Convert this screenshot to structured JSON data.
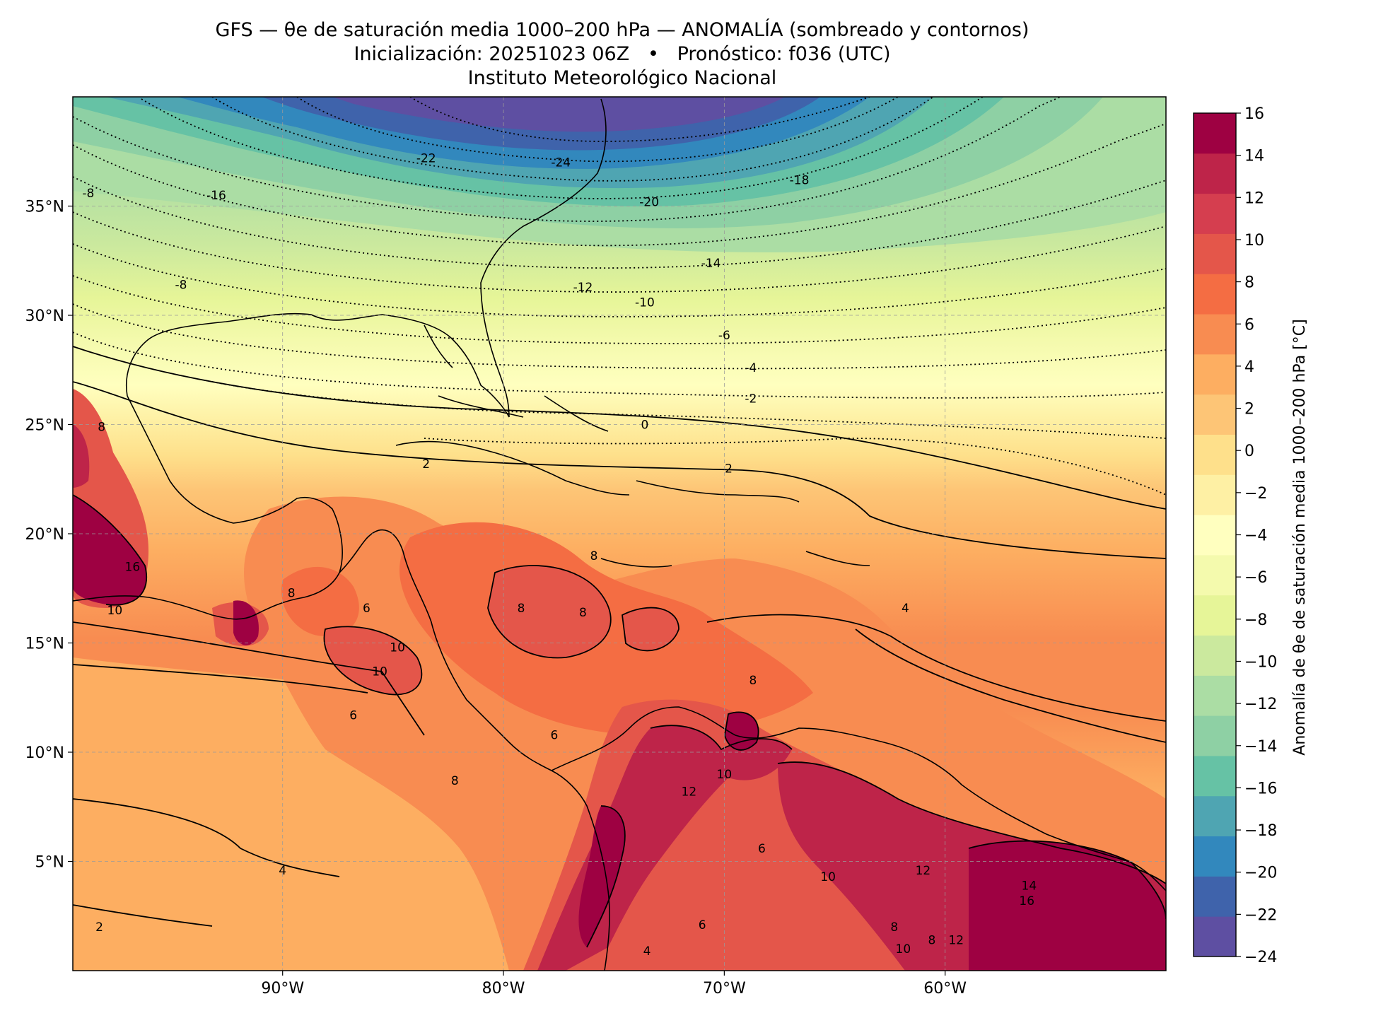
{
  "title": {
    "line1": "GFS — θe de saturación media 1000–200 hPa — ANOMALÍA (sombreado y contornos)",
    "line2": "Inicialización: 20251023 06Z   •   Pronóstico: f036 (UTC)",
    "line3": "Instituto Meteorológico Nacional"
  },
  "map": {
    "lon_range": [
      -99.5,
      -50
    ],
    "lat_range": [
      0,
      40
    ],
    "grid": true,
    "lon_ticks": [
      {
        "value": -90,
        "label": "90°W"
      },
      {
        "value": -80,
        "label": "80°W"
      },
      {
        "value": -70,
        "label": "70°W"
      },
      {
        "value": -60,
        "label": "60°W"
      }
    ],
    "lat_ticks": [
      {
        "value": 35,
        "label": "35°N"
      },
      {
        "value": 30,
        "label": "30°N"
      },
      {
        "value": 25,
        "label": "25°N"
      },
      {
        "value": 20,
        "label": "20°N"
      },
      {
        "value": 15,
        "label": "15°N"
      },
      {
        "value": 10,
        "label": "10°N"
      },
      {
        "value": 5,
        "label": "5°N"
      }
    ],
    "contour_labels": [
      {
        "text": "-24",
        "lon": -77.4,
        "lat": 37.0
      },
      {
        "text": "-22",
        "lon": -83.5,
        "lat": 37.2
      },
      {
        "text": "-20",
        "lon": -73.4,
        "lat": 35.2
      },
      {
        "text": "-18",
        "lon": -66.6,
        "lat": 36.2
      },
      {
        "text": "-16",
        "lon": -93.0,
        "lat": 35.5
      },
      {
        "text": "-14",
        "lon": -70.6,
        "lat": 32.4
      },
      {
        "text": "-12",
        "lon": -76.4,
        "lat": 31.3
      },
      {
        "text": "-10",
        "lon": -73.6,
        "lat": 30.6
      },
      {
        "text": "-8",
        "lon": -94.6,
        "lat": 31.4
      },
      {
        "text": "-8",
        "lon": -98.8,
        "lat": 35.6
      },
      {
        "text": "-6",
        "lon": -70.0,
        "lat": 29.1
      },
      {
        "text": "-4",
        "lon": -68.8,
        "lat": 27.6
      },
      {
        "text": "-2",
        "lon": -68.8,
        "lat": 26.2
      },
      {
        "text": "0",
        "lon": -73.6,
        "lat": 25.0
      },
      {
        "text": "2",
        "lon": -83.5,
        "lat": 23.2
      },
      {
        "text": "2",
        "lon": -69.8,
        "lat": 23.0
      },
      {
        "text": "4",
        "lon": -61.8,
        "lat": 16.6
      },
      {
        "text": "4",
        "lon": -73.5,
        "lat": 0.9
      },
      {
        "text": "4",
        "lon": -90.0,
        "lat": 4.6
      },
      {
        "text": "2",
        "lon": -98.3,
        "lat": 2.0
      },
      {
        "text": "6",
        "lon": -86.2,
        "lat": 16.6
      },
      {
        "text": "6",
        "lon": -86.8,
        "lat": 11.7
      },
      {
        "text": "6",
        "lon": -77.7,
        "lat": 10.8
      },
      {
        "text": "6",
        "lon": -68.3,
        "lat": 5.6
      },
      {
        "text": "6",
        "lon": -71.0,
        "lat": 2.1
      },
      {
        "text": "8",
        "lon": -89.6,
        "lat": 17.3
      },
      {
        "text": "8",
        "lon": -75.9,
        "lat": 19.0
      },
      {
        "text": "8",
        "lon": -76.4,
        "lat": 16.4
      },
      {
        "text": "8",
        "lon": -79.2,
        "lat": 16.6
      },
      {
        "text": "8",
        "lon": -68.7,
        "lat": 13.3
      },
      {
        "text": "8",
        "lon": -82.2,
        "lat": 8.7
      },
      {
        "text": "8",
        "lon": -98.2,
        "lat": 24.9
      },
      {
        "text": "8",
        "lon": -60.6,
        "lat": 1.4
      },
      {
        "text": "8",
        "lon": -62.3,
        "lat": 2.0
      },
      {
        "text": "10",
        "lon": -97.6,
        "lat": 16.5
      },
      {
        "text": "10",
        "lon": -85.6,
        "lat": 13.7
      },
      {
        "text": "10",
        "lon": -84.8,
        "lat": 14.8
      },
      {
        "text": "10",
        "lon": -70.0,
        "lat": 9.0
      },
      {
        "text": "10",
        "lon": -65.3,
        "lat": 4.3
      },
      {
        "text": "10",
        "lon": -61.9,
        "lat": 1.0
      },
      {
        "text": "12",
        "lon": -71.6,
        "lat": 8.2
      },
      {
        "text": "12",
        "lon": -61.0,
        "lat": 4.6
      },
      {
        "text": "12",
        "lon": -59.5,
        "lat": 1.4
      },
      {
        "text": "14",
        "lon": -56.2,
        "lat": 3.9
      },
      {
        "text": "16",
        "lon": -96.8,
        "lat": 18.5
      },
      {
        "text": "16",
        "lon": -56.3,
        "lat": 3.2
      }
    ]
  },
  "colorbar": {
    "label": "Anomalía de θe de saturación media 1000–200 hPa [°C]",
    "levels": [
      -24,
      -22,
      -20,
      -18,
      -16,
      -14,
      -12,
      -10,
      -8,
      -6,
      -4,
      -2,
      0,
      2,
      4,
      6,
      8,
      10,
      12,
      14,
      16
    ],
    "tick_labels": [
      "16",
      "14",
      "12",
      "10",
      "8",
      "6",
      "4",
      "2",
      "0",
      "−2",
      "−4",
      "−6",
      "−8",
      "−10",
      "−12",
      "−14",
      "−16",
      "−18",
      "−20",
      "−22",
      "−24"
    ],
    "colors": [
      "#5e4fa2",
      "#3f63ab",
      "#3288bd",
      "#4fa5b2",
      "#66c2a5",
      "#8ed0a4",
      "#abdda4",
      "#cbe99e",
      "#e6f598",
      "#f4faad",
      "#ffffbf",
      "#fef0a4",
      "#fee08b",
      "#fdc576",
      "#fdae61",
      "#f88c51",
      "#f46d43",
      "#e4564a",
      "#d53e4f",
      "#be2449",
      "#9e0142"
    ]
  }
}
